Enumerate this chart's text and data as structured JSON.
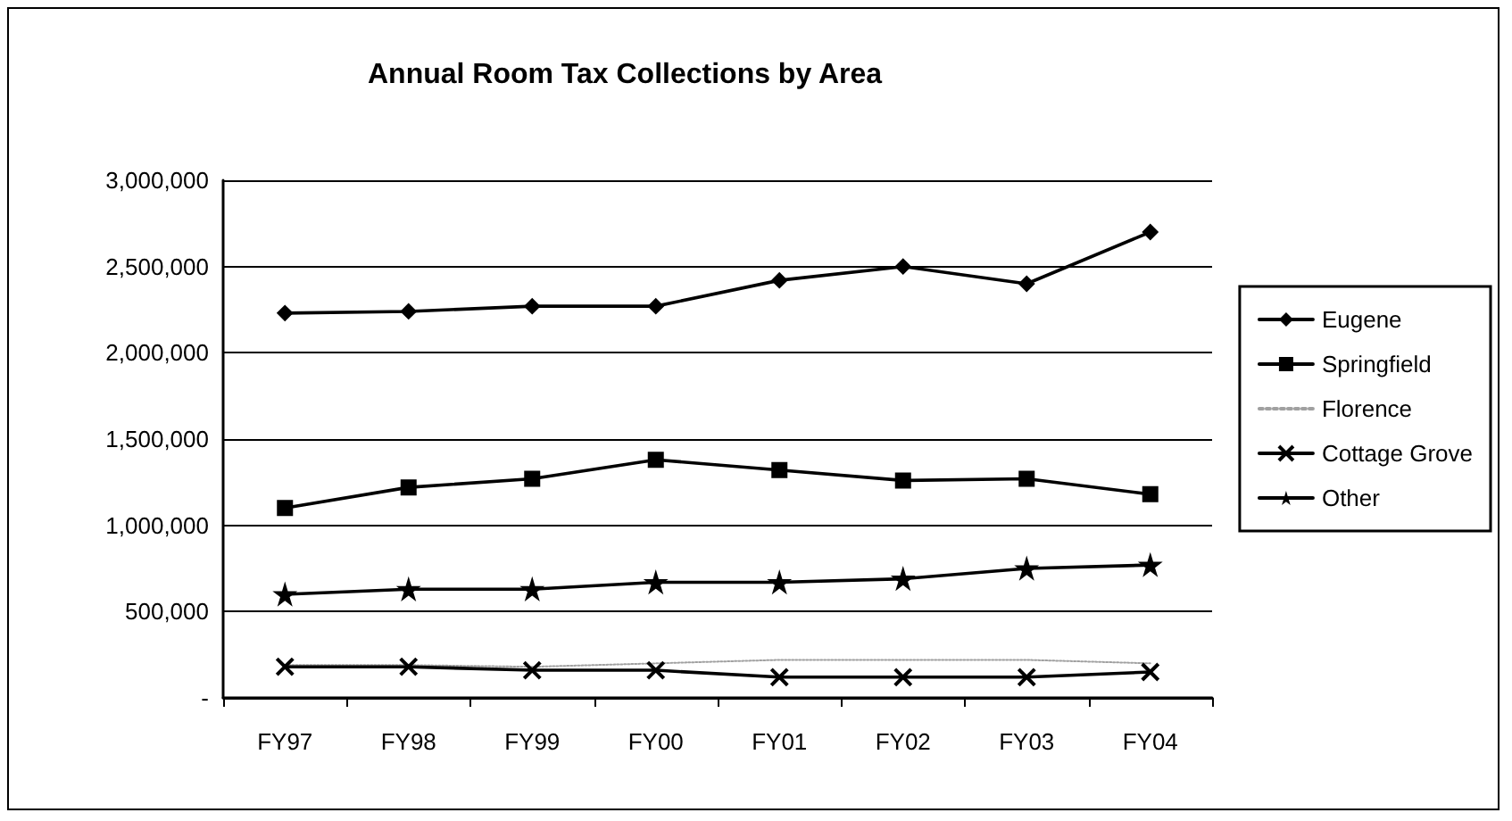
{
  "chart_data": {
    "type": "line",
    "title": "Annual Room Tax Collections by Area",
    "categories": [
      "FY97",
      "FY98",
      "FY99",
      "FY00",
      "FY01",
      "FY02",
      "FY03",
      "FY04"
    ],
    "series": [
      {
        "name": "Eugene",
        "color": "#000000",
        "marker": "diamond",
        "line_style": "solid",
        "values": [
          2230000,
          2240000,
          2270000,
          2270000,
          2420000,
          2500000,
          2400000,
          2700000
        ]
      },
      {
        "name": "Springfield",
        "color": "#000000",
        "marker": "square",
        "line_style": "solid",
        "values": [
          1100000,
          1220000,
          1270000,
          1380000,
          1320000,
          1260000,
          1270000,
          1180000
        ]
      },
      {
        "name": "Florence",
        "color": "#a0a0a0",
        "marker": "none",
        "line_style": "dotted",
        "values": [
          190000,
          190000,
          180000,
          200000,
          220000,
          220000,
          220000,
          200000
        ]
      },
      {
        "name": "Cottage Grove",
        "color": "#000000",
        "marker": "cross",
        "line_style": "solid",
        "values": [
          180000,
          180000,
          160000,
          160000,
          120000,
          120000,
          120000,
          150000
        ]
      },
      {
        "name": "Other",
        "color": "#000000",
        "marker": "star",
        "line_style": "solid",
        "values": [
          600000,
          630000,
          630000,
          670000,
          670000,
          690000,
          750000,
          770000
        ]
      }
    ],
    "ylim": [
      0,
      3000000
    ],
    "yticks": [
      {
        "value": 0,
        "label": "-"
      },
      {
        "value": 500000,
        "label": "500,000"
      },
      {
        "value": 1000000,
        "label": "1,000,000"
      },
      {
        "value": 1500000,
        "label": "1,500,000"
      },
      {
        "value": 2000000,
        "label": "2,000,000"
      },
      {
        "value": 2500000,
        "label": "2,500,000"
      },
      {
        "value": 3000000,
        "label": "3,000,000"
      }
    ],
    "grid": "y",
    "legend": "right"
  }
}
